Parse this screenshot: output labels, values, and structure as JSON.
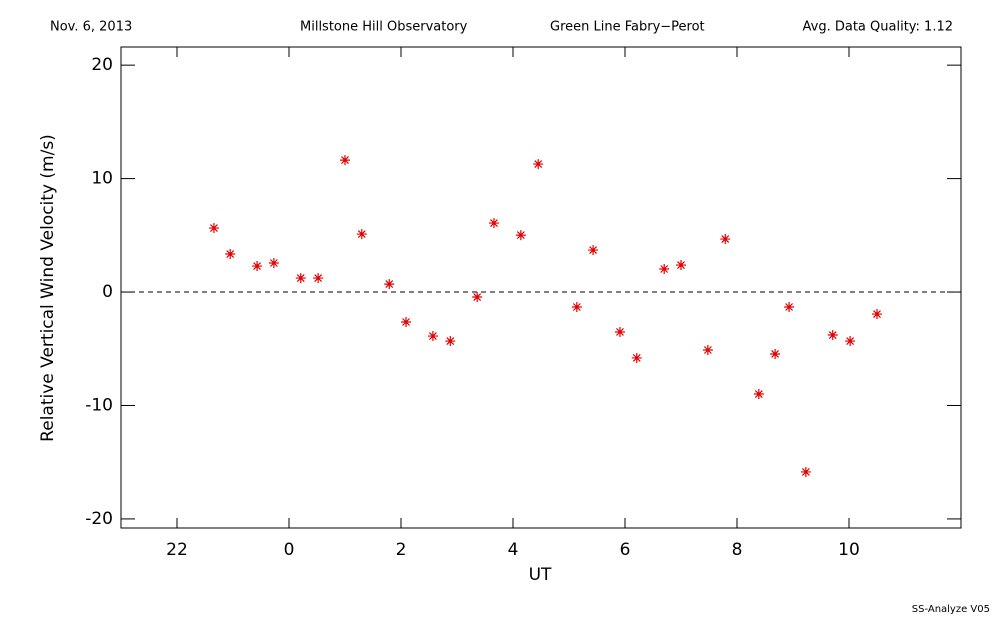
{
  "header": {
    "date": "Nov. 6, 2013",
    "observatory": "Millstone Hill Observatory",
    "instrument": "Green Line Fabry−Perot",
    "quality": "Avg. Data Quality: 1.12"
  },
  "footer": "SS-Analyze V05",
  "chart_data": {
    "type": "scatter",
    "x_label": "UT",
    "y_label": "Relative Vertical Wind Velocity (m/s)",
    "color": "#e00000",
    "zero_line": true,
    "xlim": [
      21,
      36
    ],
    "ylim": [
      -20.8,
      21.6
    ],
    "xticks": [
      22,
      {
        "value": 24,
        "label": "0"
      },
      {
        "value": 26,
        "label": "2"
      },
      {
        "value": 28,
        "label": "4"
      },
      {
        "value": 30,
        "label": "6"
      },
      {
        "value": 32,
        "label": "8"
      },
      {
        "value": 34,
        "label": "10"
      }
    ],
    "yticks": [
      -20,
      -10,
      0,
      10,
      20
    ],
    "x": [
      22.66,
      22.95,
      23.43,
      23.73,
      24.21,
      24.52,
      25.0,
      25.3,
      25.79,
      26.09,
      26.57,
      26.88,
      27.36,
      27.66,
      28.14,
      28.45,
      29.14,
      29.43,
      29.91,
      30.21,
      30.7,
      31.0,
      31.48,
      31.79,
      32.39,
      32.68,
      32.93,
      33.23,
      33.71,
      34.02,
      34.5
    ],
    "values": [
      5.64,
      3.35,
      2.29,
      2.56,
      1.23,
      1.23,
      11.63,
      5.11,
      0.7,
      -2.64,
      -3.88,
      -4.32,
      -0.44,
      6.08,
      5.02,
      11.28,
      -1.32,
      3.7,
      -3.52,
      -5.81,
      2.03,
      2.38,
      -5.11,
      4.67,
      -8.99,
      -5.46,
      -1.32,
      -15.86,
      -3.79,
      -4.32,
      -1.94
    ]
  }
}
